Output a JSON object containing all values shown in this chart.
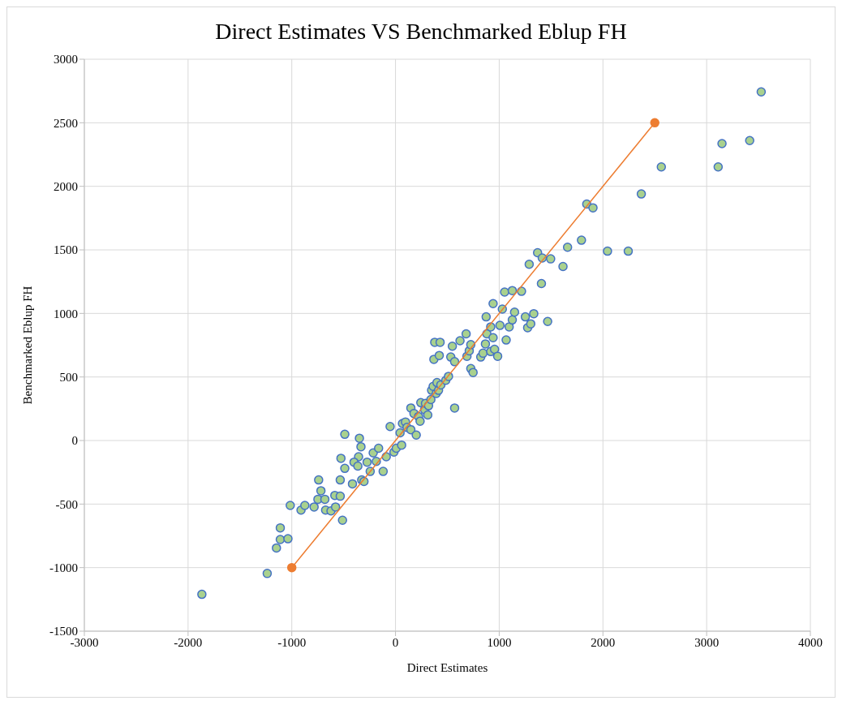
{
  "chart_data": {
    "type": "scatter",
    "title": "Direct Estimates VS Benchmarked Eblup FH",
    "xlabel": "Direct Estimates",
    "ylabel": "Benchmarked Eblup FH",
    "xlim": [
      -3000,
      4000
    ],
    "xticks": [
      -3000,
      -2000,
      -1000,
      0,
      1000,
      2000,
      3000,
      4000
    ],
    "ylim": [
      -1500,
      3000
    ],
    "yticks": [
      -1500,
      -1000,
      -500,
      0,
      500,
      1000,
      1500,
      2000,
      2500,
      3000
    ],
    "grid": true,
    "legend": false,
    "series": [
      {
        "marker": "circle",
        "color": "#a9d18e",
        "x": [
          -1867,
          -1237,
          -1148,
          -1111,
          -1037,
          -1111,
          -1015,
          -911,
          -874,
          -785,
          -748,
          -719,
          -741,
          -674,
          -681,
          -622,
          -578,
          -585,
          -533,
          -511,
          -533,
          -526,
          -489,
          -489,
          -415,
          -356,
          -400,
          -363,
          -333,
          -348,
          -326,
          -304,
          -274,
          -244,
          -215,
          -185,
          -163,
          -119,
          -89,
          -52,
          -15,
          7,
          44,
          59,
          67,
          96,
          111,
          148,
          148,
          178,
          200,
          222,
          244,
          237,
          281,
          289,
          311,
          319,
          341,
          348,
          363,
          393,
          415,
          370,
          378,
          430,
          422,
          400,
          437,
          485,
          511,
          533,
          548,
          570,
          570,
          622,
          681,
          689,
          711,
          726,
          726,
          748,
          822,
          844,
          867,
          881,
          874,
          918,
          918,
          941,
          955,
          941,
          985,
          1007,
          1030,
          1052,
          1067,
          1096,
          1126,
          1126,
          1148,
          1215,
          1252,
          1274,
          1289,
          1333,
          1304,
          1370,
          1415,
          1407,
          1467,
          1496,
          1615,
          1659,
          1793,
          1844,
          1904,
          2044,
          2244,
          2370,
          2563,
          3111,
          3148,
          3415,
          3526
        ],
        "values": [
          -1210,
          -1046,
          -845,
          -779,
          -773,
          -687,
          -511,
          -547,
          -511,
          -523,
          -462,
          -395,
          -310,
          -547,
          -462,
          -554,
          -523,
          -432,
          -438,
          -627,
          -310,
          -140,
          -219,
          49,
          -341,
          -128,
          -170,
          -201,
          -49,
          18,
          -310,
          -322,
          -170,
          -243,
          -97,
          -164,
          -61,
          -243,
          -128,
          110,
          -91,
          -61,
          61,
          -36,
          134,
          146,
          103,
          85,
          256,
          213,
          43,
          189,
          298,
          152,
          243,
          292,
          201,
          274,
          322,
          395,
          426,
          371,
          395,
          639,
          773,
          773,
          669,
          456,
          438,
          474,
          505,
          657,
          742,
          620,
          256,
          785,
          839,
          663,
          706,
          754,
          566,
          535,
          657,
          687,
          760,
          839,
          973,
          894,
          700,
          809,
          718,
          1077,
          663,
          906,
          1034,
          1168,
          791,
          894,
          949,
          1180,
          1010,
          1174,
          973,
          888,
          1387,
          998,
          918,
          1478,
          1436,
          1235,
          937,
          1429,
          1369,
          1521,
          1576,
          1861,
          1831,
          1490,
          1490,
          1940,
          2153,
          2153,
          2336,
          2360,
          2743
        ]
      },
      {
        "type": "line",
        "marker": "circle",
        "line_style": "solid",
        "color": "#ed7d31",
        "x": [
          -1000,
          2500
        ],
        "values": [
          -1000,
          2500
        ]
      }
    ]
  }
}
